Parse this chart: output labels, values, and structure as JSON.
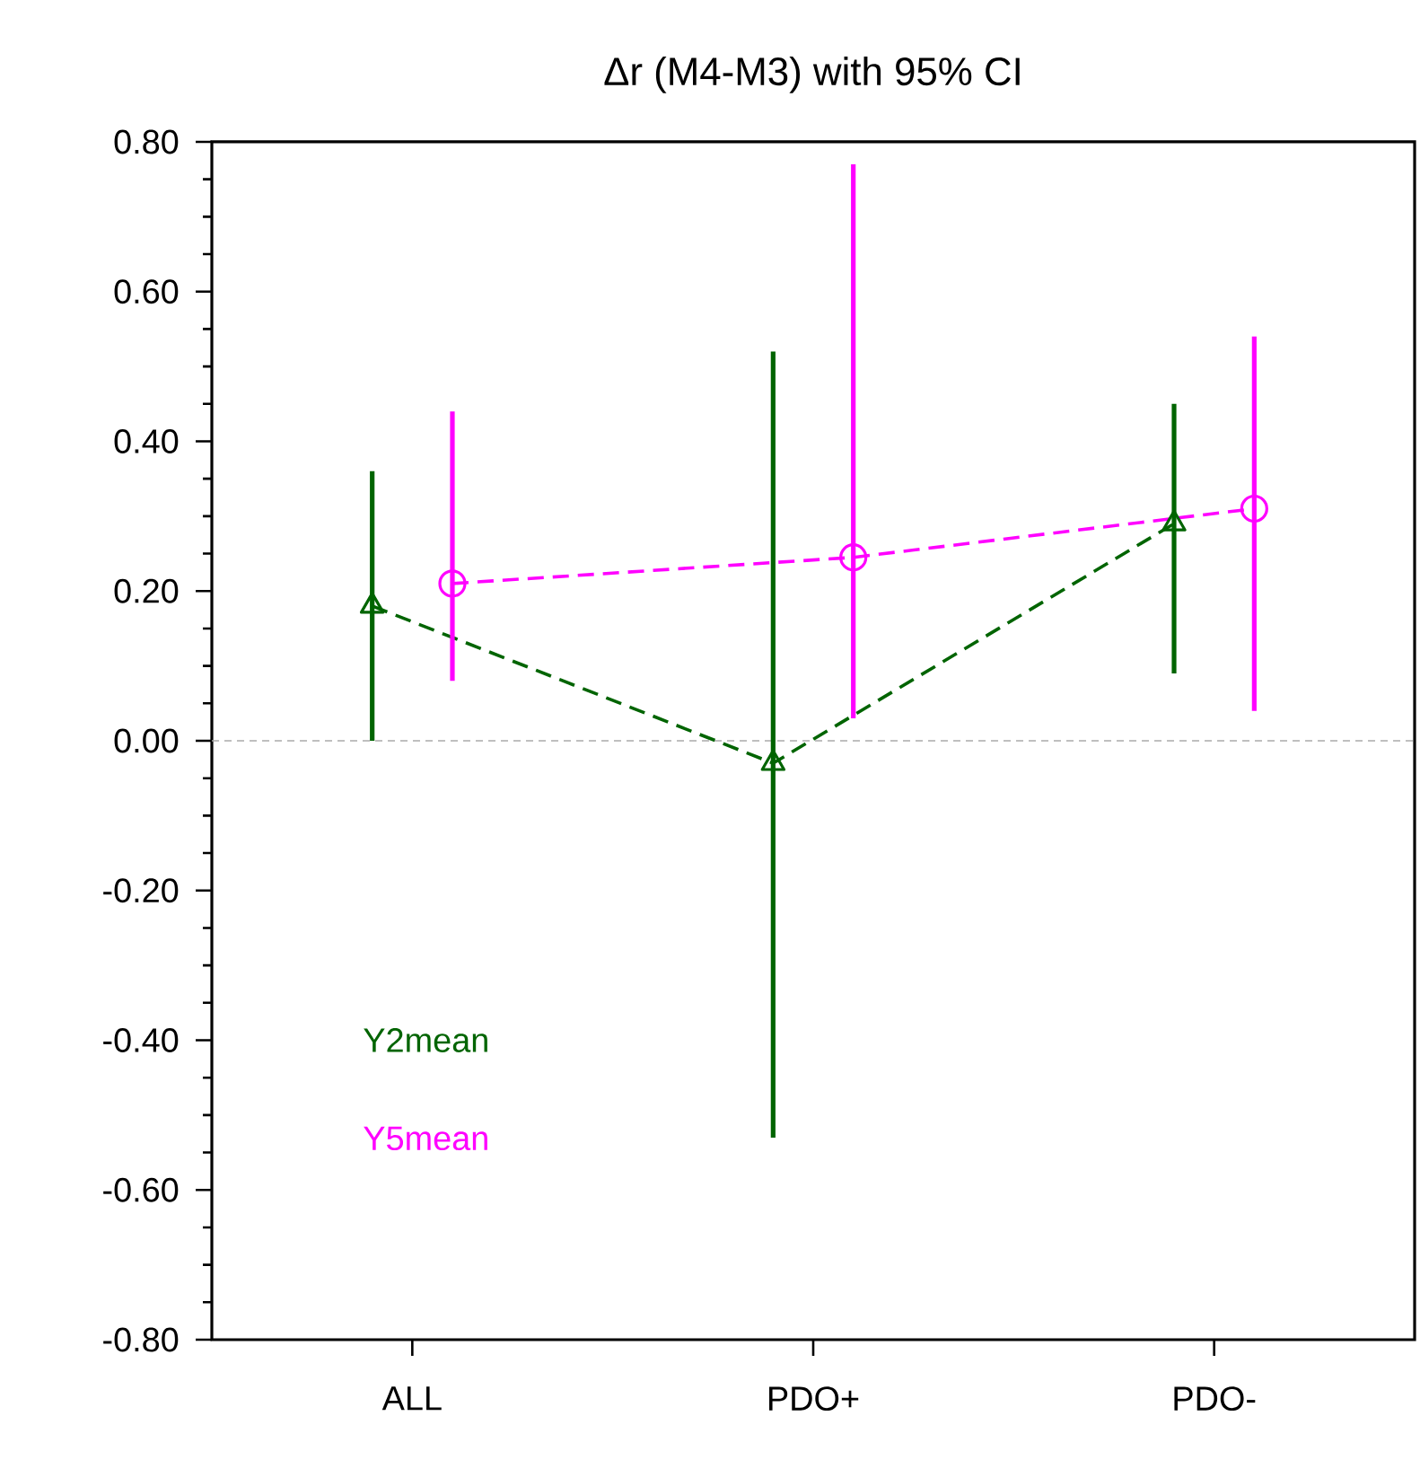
{
  "chart_data": {
    "type": "line",
    "title": "Δr (M4-M3) with 95% CI",
    "categories": [
      "ALL",
      "PDO+",
      "PDO-"
    ],
    "series": [
      {
        "name": "Y2mean",
        "color": "#006400",
        "marker": "triangle",
        "values": [
          0.18,
          -0.03,
          0.29
        ],
        "errors": [
          [
            0.0,
            0.36
          ],
          [
            -0.53,
            0.52
          ],
          [
            0.09,
            0.45
          ]
        ]
      },
      {
        "name": "Y5mean",
        "color": "#ff00ff",
        "marker": "circle",
        "values": [
          0.21,
          0.245,
          0.31
        ],
        "errors": [
          [
            0.08,
            0.44
          ],
          [
            0.03,
            0.77
          ],
          [
            0.04,
            0.54
          ]
        ]
      }
    ],
    "line_style": "dashed",
    "ylim": [
      -0.8,
      0.8
    ],
    "yticks": [
      {
        "value": -0.8,
        "label": "-0.80"
      },
      {
        "value": -0.6,
        "label": "-0.60"
      },
      {
        "value": -0.4,
        "label": "-0.40"
      },
      {
        "value": -0.2,
        "label": "-0.20"
      },
      {
        "value": 0,
        "label": "0.00"
      },
      {
        "value": 0.2,
        "label": "0.20"
      },
      {
        "value": 0.4,
        "label": "0.40"
      },
      {
        "value": 0.6,
        "label": "0.60"
      },
      {
        "value": 0.8,
        "label": "0.80"
      }
    ],
    "ref_lines": [
      {
        "axis": "y",
        "value": 0,
        "color": "#aaaaaa",
        "line_style": "dashed"
      }
    ],
    "legend": "bottom left",
    "grid": false
  }
}
